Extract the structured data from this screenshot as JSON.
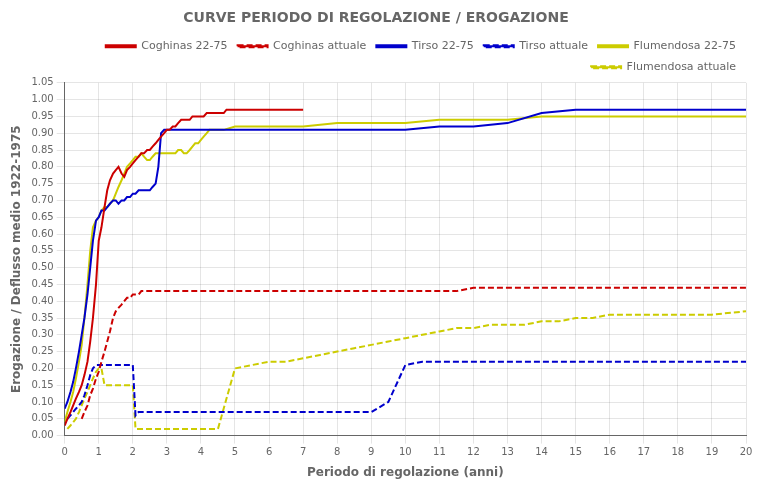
{
  "chart_data": {
    "type": "line",
    "title": "CURVE PERIODO DI REGOLAZIONE / EROGAZIONE",
    "xlabel": "Periodo di regolazione (anni)",
    "ylabel": "Erogazione / Deflusso medio 1922-1975",
    "xlim": [
      0,
      20
    ],
    "ylim": [
      0,
      1.05
    ],
    "xticks": [
      0,
      1,
      2,
      3,
      4,
      5,
      6,
      7,
      8,
      9,
      10,
      11,
      12,
      13,
      14,
      15,
      16,
      17,
      18,
      19,
      20
    ],
    "yticks": [
      {
        "value": 0,
        "label": "0.00"
      },
      0.05,
      {
        "value": 0.1,
        "label": "0.10"
      },
      0.15,
      {
        "value": 0.2,
        "label": "0.20"
      },
      0.25,
      {
        "value": 0.3,
        "label": "0.30"
      },
      0.35,
      {
        "value": 0.4,
        "label": "0.40"
      },
      0.45,
      {
        "value": 0.5,
        "label": "0.50"
      },
      0.55,
      {
        "value": 0.6,
        "label": "0.60"
      },
      0.65,
      {
        "value": 0.7,
        "label": "0.70"
      },
      0.75,
      {
        "value": 0.8,
        "label": "0.80"
      },
      0.85,
      {
        "value": 0.9,
        "label": "0.90"
      },
      0.95,
      {
        "value": 1,
        "label": "1.00"
      },
      1.05
    ],
    "grid": true,
    "legend": "upper right",
    "series": [
      {
        "name": "Coghinas 22-75",
        "color": "#cc0000",
        "line_style": "solid",
        "x": [
          0.0,
          0.08,
          0.17,
          0.25,
          0.33,
          0.42,
          0.5,
          0.58,
          0.67,
          0.75,
          0.83,
          0.92,
          1.0,
          1.08,
          1.17,
          1.25,
          1.33,
          1.42,
          1.5,
          1.58,
          1.67,
          1.75,
          1.83,
          1.92,
          2.0,
          2.08,
          2.17,
          2.25,
          2.33,
          2.42,
          2.5,
          2.58,
          2.67,
          2.75,
          2.83,
          2.92,
          3.0,
          3.08,
          3.17,
          3.25,
          3.33,
          3.42,
          3.5,
          3.58,
          3.67,
          3.75,
          3.83,
          3.92,
          4.0,
          4.08,
          4.17,
          4.25,
          4.33,
          4.42,
          4.5,
          4.58,
          4.67,
          4.75,
          4.83,
          4.92,
          5.0,
          6.0,
          7.0
        ],
        "values": [
          0.03,
          0.05,
          0.07,
          0.09,
          0.11,
          0.13,
          0.15,
          0.18,
          0.22,
          0.28,
          0.35,
          0.45,
          0.58,
          0.62,
          0.68,
          0.73,
          0.76,
          0.78,
          0.79,
          0.8,
          0.78,
          0.77,
          0.79,
          0.8,
          0.81,
          0.82,
          0.83,
          0.84,
          0.84,
          0.85,
          0.85,
          0.86,
          0.87,
          0.88,
          0.89,
          0.9,
          0.91,
          0.91,
          0.92,
          0.92,
          0.93,
          0.94,
          0.94,
          0.94,
          0.94,
          0.95,
          0.95,
          0.95,
          0.95,
          0.95,
          0.96,
          0.96,
          0.96,
          0.96,
          0.96,
          0.96,
          0.96,
          0.97,
          0.97,
          0.97,
          0.97,
          0.97,
          0.97
        ]
      },
      {
        "name": "Coghinas attuale",
        "color": "#cc0000",
        "line_style": "dashed",
        "x": [
          0.5,
          0.58,
          0.67,
          0.75,
          0.83,
          0.92,
          1.0,
          1.08,
          1.17,
          1.25,
          1.33,
          1.42,
          1.5,
          1.58,
          1.67,
          1.75,
          1.83,
          1.92,
          2.0,
          2.08,
          2.17,
          2.25,
          2.33,
          2.42,
          2.5,
          2.58,
          2.67,
          2.75,
          2.83,
          2.92,
          3.0,
          3.5,
          4.0,
          4.5,
          5.0,
          5.5,
          6.0,
          6.5,
          7.0,
          7.5,
          8.0,
          8.5,
          9.0,
          9.5,
          10.0,
          10.5,
          11.0,
          11.5,
          12.0,
          12.5,
          13.0,
          13.5,
          14.0,
          14.5,
          15.0,
          16.0,
          17.0,
          18.0,
          19.0,
          20.0
        ],
        "values": [
          0.05,
          0.07,
          0.09,
          0.12,
          0.14,
          0.17,
          0.19,
          0.22,
          0.25,
          0.28,
          0.31,
          0.35,
          0.37,
          0.38,
          0.39,
          0.4,
          0.41,
          0.41,
          0.42,
          0.42,
          0.42,
          0.43,
          0.43,
          0.43,
          0.43,
          0.43,
          0.43,
          0.43,
          0.43,
          0.43,
          0.43,
          0.43,
          0.43,
          0.43,
          0.43,
          0.43,
          0.43,
          0.43,
          0.43,
          0.43,
          0.43,
          0.43,
          0.43,
          0.43,
          0.43,
          0.43,
          0.43,
          0.43,
          0.44,
          0.44,
          0.44,
          0.44,
          0.44,
          0.44,
          0.44,
          0.44,
          0.44,
          0.44,
          0.44,
          0.44
        ]
      },
      {
        "name": "Tirso 22-75",
        "color": "#0000cc",
        "line_style": "solid",
        "x": [
          0.0,
          0.08,
          0.17,
          0.25,
          0.33,
          0.42,
          0.5,
          0.58,
          0.67,
          0.75,
          0.83,
          0.92,
          1.0,
          1.08,
          1.17,
          1.25,
          1.33,
          1.42,
          1.5,
          1.58,
          1.67,
          1.75,
          1.83,
          1.92,
          2.0,
          2.08,
          2.17,
          2.25,
          2.33,
          2.42,
          2.5,
          2.58,
          2.67,
          2.75,
          2.83,
          2.92,
          3.0,
          3.5,
          4.0,
          4.5,
          5.0,
          6.0,
          7.0,
          8.0,
          9.0,
          10.0,
          11.0,
          12.0,
          13.0,
          14.0,
          15.0,
          16.0,
          17.0,
          18.0,
          19.0,
          20.0
        ],
        "values": [
          0.08,
          0.1,
          0.13,
          0.16,
          0.2,
          0.25,
          0.3,
          0.35,
          0.42,
          0.5,
          0.58,
          0.64,
          0.65,
          0.67,
          0.67,
          0.68,
          0.69,
          0.7,
          0.7,
          0.69,
          0.7,
          0.7,
          0.71,
          0.71,
          0.72,
          0.72,
          0.73,
          0.73,
          0.73,
          0.73,
          0.73,
          0.74,
          0.75,
          0.8,
          0.9,
          0.91,
          0.91,
          0.91,
          0.91,
          0.91,
          0.91,
          0.91,
          0.91,
          0.91,
          0.91,
          0.91,
          0.92,
          0.92,
          0.93,
          0.96,
          0.97,
          0.97,
          0.97,
          0.97,
          0.97,
          0.97
        ]
      },
      {
        "name": "Tirso attuale",
        "color": "#0000cc",
        "line_style": "dashed",
        "x": [
          0.08,
          0.17,
          0.25,
          0.33,
          0.42,
          0.5,
          0.58,
          0.67,
          0.75,
          0.83,
          0.92,
          1.0,
          1.08,
          1.17,
          1.25,
          1.33,
          1.42,
          1.5,
          1.58,
          1.67,
          1.75,
          1.83,
          1.92,
          2.0,
          2.08,
          2.17,
          2.25,
          2.33,
          2.42,
          2.5,
          2.58,
          2.67,
          2.75,
          2.83,
          2.92,
          3.0,
          3.5,
          4.0,
          4.5,
          5.0,
          5.5,
          6.0,
          6.5,
          7.0,
          7.5,
          8.0,
          8.5,
          9.0,
          9.5,
          10.0,
          10.5,
          11.0,
          11.5,
          12.0,
          12.5,
          13.0,
          13.5,
          14.0,
          14.5,
          15.0,
          15.5,
          16.0,
          16.5,
          17.0,
          17.5,
          18.0,
          18.5,
          19.0,
          19.5,
          20.0
        ],
        "values": [
          0.05,
          0.06,
          0.07,
          0.08,
          0.09,
          0.1,
          0.12,
          0.15,
          0.18,
          0.2,
          0.21,
          0.21,
          0.21,
          0.21,
          0.21,
          0.21,
          0.21,
          0.21,
          0.21,
          0.21,
          0.21,
          0.21,
          0.21,
          0.21,
          0.06,
          0.07,
          0.07,
          0.07,
          0.07,
          0.07,
          0.07,
          0.07,
          0.07,
          0.07,
          0.07,
          0.07,
          0.07,
          0.07,
          0.07,
          0.07,
          0.07,
          0.07,
          0.07,
          0.07,
          0.07,
          0.07,
          0.07,
          0.07,
          0.1,
          0.21,
          0.22,
          0.22,
          0.22,
          0.22,
          0.22,
          0.22,
          0.22,
          0.22,
          0.22,
          0.22,
          0.22,
          0.22,
          0.22,
          0.22,
          0.22,
          0.22,
          0.22,
          0.22,
          0.22,
          0.22
        ]
      },
      {
        "name": "Flumendosa 22-75",
        "color": "#cccc00",
        "line_style": "solid",
        "x": [
          0.0,
          0.08,
          0.17,
          0.25,
          0.33,
          0.42,
          0.5,
          0.58,
          0.67,
          0.75,
          0.83,
          0.92,
          1.0,
          1.08,
          1.17,
          1.25,
          1.33,
          1.42,
          1.5,
          1.58,
          1.67,
          1.75,
          1.83,
          1.92,
          2.0,
          2.08,
          2.17,
          2.25,
          2.33,
          2.42,
          2.5,
          2.58,
          2.67,
          2.75,
          2.83,
          2.92,
          3.0,
          3.08,
          3.17,
          3.25,
          3.33,
          3.42,
          3.5,
          3.58,
          3.67,
          3.75,
          3.83,
          3.92,
          4.0,
          4.08,
          4.17,
          4.25,
          4.33,
          4.42,
          4.5,
          4.58,
          4.67,
          5.0,
          6.0,
          7.0,
          8.0,
          9.0,
          10.0,
          11.0,
          12.0,
          13.0,
          14.0,
          15.0,
          16.0,
          17.0,
          18.0,
          19.0,
          20.0
        ],
        "values": [
          0.04,
          0.07,
          0.1,
          0.13,
          0.17,
          0.22,
          0.27,
          0.35,
          0.45,
          0.55,
          0.62,
          0.64,
          0.65,
          0.67,
          0.68,
          0.68,
          0.69,
          0.7,
          0.72,
          0.74,
          0.76,
          0.78,
          0.8,
          0.81,
          0.82,
          0.83,
          0.83,
          0.84,
          0.83,
          0.82,
          0.82,
          0.83,
          0.84,
          0.84,
          0.84,
          0.84,
          0.84,
          0.84,
          0.84,
          0.84,
          0.85,
          0.85,
          0.84,
          0.84,
          0.85,
          0.86,
          0.87,
          0.87,
          0.88,
          0.89,
          0.9,
          0.91,
          0.91,
          0.91,
          0.91,
          0.91,
          0.91,
          0.92,
          0.92,
          0.92,
          0.93,
          0.93,
          0.93,
          0.94,
          0.94,
          0.94,
          0.95,
          0.95,
          0.95,
          0.95,
          0.95,
          0.95,
          0.95
        ]
      },
      {
        "name": "Flumendosa attuale",
        "color": "#cccc00",
        "line_style": "dashed",
        "x": [
          0.08,
          0.17,
          0.25,
          0.33,
          0.42,
          0.5,
          0.58,
          0.67,
          0.75,
          0.83,
          0.92,
          1.0,
          1.08,
          1.17,
          1.25,
          1.33,
          1.42,
          1.5,
          1.58,
          1.67,
          1.75,
          1.83,
          1.92,
          2.0,
          2.08,
          2.17,
          2.25,
          2.33,
          2.42,
          2.5,
          2.58,
          2.67,
          2.75,
          2.83,
          2.92,
          3.0,
          3.5,
          4.0,
          4.5,
          5.0,
          5.5,
          6.0,
          6.5,
          7.0,
          7.5,
          8.0,
          8.5,
          9.0,
          9.5,
          10.0,
          10.5,
          11.0,
          11.5,
          12.0,
          12.5,
          13.0,
          13.5,
          14.0,
          14.5,
          15.0,
          15.5,
          16.0,
          17.0,
          18.0,
          19.0,
          20.0
        ],
        "values": [
          0.02,
          0.03,
          0.04,
          0.05,
          0.07,
          0.09,
          0.11,
          0.13,
          0.15,
          0.17,
          0.19,
          0.2,
          0.2,
          0.15,
          0.15,
          0.15,
          0.15,
          0.15,
          0.15,
          0.15,
          0.15,
          0.15,
          0.15,
          0.15,
          0.02,
          0.02,
          0.02,
          0.02,
          0.02,
          0.02,
          0.02,
          0.02,
          0.02,
          0.02,
          0.02,
          0.02,
          0.02,
          0.02,
          0.02,
          0.2,
          0.21,
          0.22,
          0.22,
          0.23,
          0.24,
          0.25,
          0.26,
          0.27,
          0.28,
          0.29,
          0.3,
          0.31,
          0.32,
          0.32,
          0.33,
          0.33,
          0.33,
          0.34,
          0.34,
          0.35,
          0.35,
          0.36,
          0.36,
          0.36,
          0.36,
          0.37
        ]
      }
    ]
  }
}
